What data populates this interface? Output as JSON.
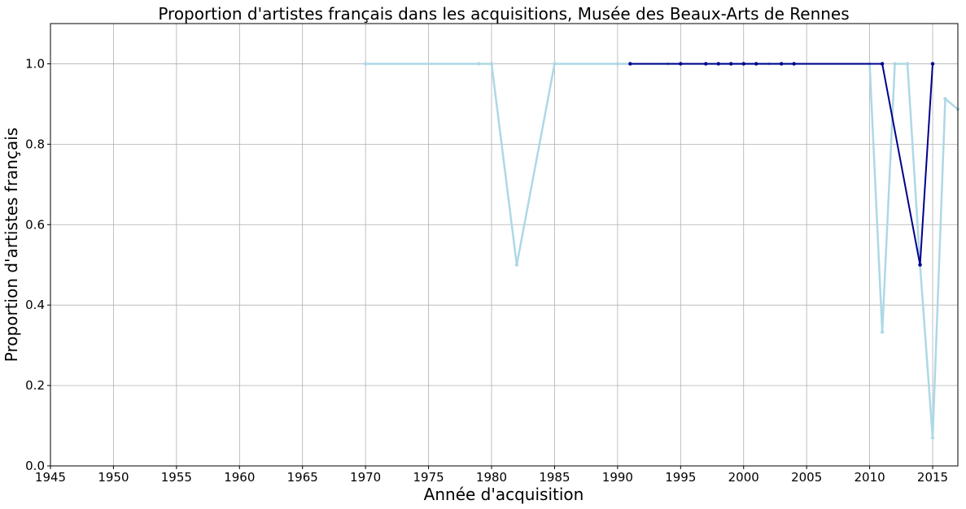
{
  "chart_data": {
    "type": "line",
    "title": "Proportion d'artistes français dans les acquisitions, Musée des Beaux-Arts de Rennes",
    "xlabel": "Année d'acquisition",
    "ylabel": "Proportion d'artistes français",
    "xlim": [
      1945,
      2017
    ],
    "ylim": [
      0,
      1.1
    ],
    "xticks": [
      "1945",
      "1950",
      "1955",
      "1960",
      "1965",
      "1970",
      "1975",
      "1980",
      "1985",
      "1990",
      "1995",
      "2000",
      "2005",
      "2010",
      "2015"
    ],
    "yticks": [
      "0.0",
      "0.2",
      "0.4",
      "0.6",
      "0.8",
      "1.0"
    ],
    "grid": true,
    "series": [
      {
        "color": "#add8e6",
        "points": [
          {
            "x": 1970,
            "y": 1.0
          },
          {
            "x": 1979,
            "y": 1.0
          },
          {
            "x": 1980,
            "y": 1.0
          },
          {
            "x": 1982,
            "y": 0.5
          },
          {
            "x": 1985,
            "y": 1.0
          },
          {
            "x": 1990,
            "y": 1.0
          },
          {
            "x": 1991,
            "y": 1.0
          },
          {
            "x": 1994,
            "y": 1.0
          },
          {
            "x": 1995,
            "y": 1.0
          },
          {
            "x": 1997,
            "y": 1.0
          },
          {
            "x": 1998,
            "y": 1.0
          },
          {
            "x": 1999,
            "y": 1.0
          },
          {
            "x": 2000,
            "y": 1.0
          },
          {
            "x": 2001,
            "y": 1.0
          },
          {
            "x": 2002,
            "y": 1.0
          },
          {
            "x": 2003,
            "y": 1.0
          },
          {
            "x": 2004,
            "y": 1.0
          },
          {
            "x": 2010,
            "y": 1.0
          },
          {
            "x": 2011,
            "y": 0.333
          },
          {
            "x": 2012,
            "y": 1.0
          },
          {
            "x": 2013,
            "y": 1.0
          },
          {
            "x": 2014,
            "y": 0.5
          },
          {
            "x": 2015,
            "y": 0.07
          },
          {
            "x": 2016,
            "y": 0.913
          },
          {
            "x": 2017,
            "y": 0.887
          }
        ]
      },
      {
        "color": "#00008b",
        "points": [
          {
            "x": 1991,
            "y": 1.0
          },
          {
            "x": 1995,
            "y": 1.0
          },
          {
            "x": 1997,
            "y": 1.0
          },
          {
            "x": 1998,
            "y": 1.0
          },
          {
            "x": 1999,
            "y": 1.0
          },
          {
            "x": 2000,
            "y": 1.0
          },
          {
            "x": 2001,
            "y": 1.0
          },
          {
            "x": 2003,
            "y": 1.0
          },
          {
            "x": 2004,
            "y": 1.0
          },
          {
            "x": 2011,
            "y": 1.0
          },
          {
            "x": 2014,
            "y": 0.5
          },
          {
            "x": 2015,
            "y": 1.0
          }
        ]
      }
    ]
  }
}
